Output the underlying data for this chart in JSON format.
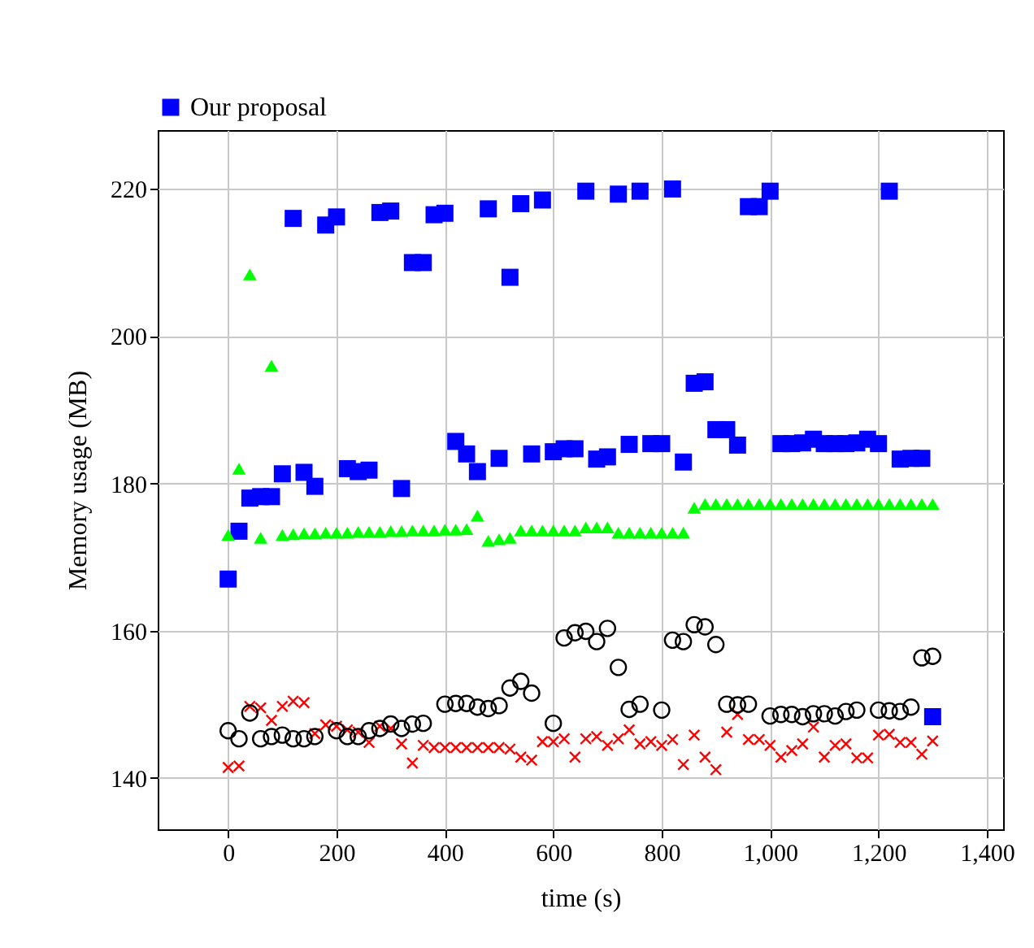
{
  "chart_data": {
    "type": "scatter",
    "xlabel": "time (s)",
    "ylabel": "Memory usage (MB)",
    "x": [
      0,
      20,
      40,
      60,
      80,
      100,
      120,
      140,
      160,
      180,
      200,
      220,
      240,
      260,
      280,
      300,
      320,
      340,
      360,
      380,
      400,
      420,
      440,
      460,
      480,
      500,
      520,
      540,
      560,
      580,
      600,
      620,
      640,
      660,
      680,
      700,
      720,
      740,
      760,
      780,
      800,
      820,
      840,
      860,
      880,
      900,
      920,
      940,
      960,
      980,
      1000,
      1020,
      1040,
      1060,
      1080,
      1100,
      1120,
      1140,
      1160,
      1180,
      1200,
      1220,
      1240,
      1260,
      1280,
      1300
    ],
    "series": [
      {
        "name": "Our proposal",
        "color": "#0000ff",
        "marker": "square",
        "values": [
          167,
          173.5,
          178,
          178.2,
          178.2,
          181.3,
          216,
          181.5,
          179.6,
          215.1,
          216.2,
          182,
          181.6,
          181.8,
          216.8,
          217,
          179.3,
          210,
          210,
          216.5,
          216.7,
          185.7,
          184,
          181.6,
          217.3,
          183.4,
          208,
          218,
          184,
          218.5,
          184.3,
          184.7,
          184.7,
          219.7,
          183.3,
          183.6,
          219.3,
          185.3,
          219.7,
          185.4,
          185.4,
          220,
          182.9,
          193.6,
          193.8,
          187.3,
          187.3,
          185.2,
          217.6,
          217.6,
          219.7,
          185.4,
          185.4,
          185.5,
          186,
          185.4,
          185.4,
          185.4,
          185.5,
          186,
          185.4,
          219.7,
          183.3,
          183.4,
          183.4,
          148.3
        ]
      },
      {
        "color": "#ff0000",
        "marker": "cross",
        "values": [
          141.4,
          141.6,
          149.7,
          149.5,
          147.8,
          149.7,
          150.4,
          150.2,
          146,
          147.2,
          147,
          146.5,
          146.2,
          144.8,
          147,
          146.7,
          144.6,
          142,
          144.4,
          144.1,
          144.1,
          144.1,
          144.1,
          144.1,
          144.1,
          144.1,
          143.9,
          142.8,
          142.4,
          144.9,
          144.9,
          145.3,
          142.8,
          145.3,
          145.6,
          144.4,
          145.3,
          146.5,
          144.6,
          144.9,
          144.4,
          145.2,
          141.8,
          145.8,
          142.8,
          141.1,
          146.2,
          148.6,
          145.2,
          145.2,
          144.4,
          142.8,
          143.7,
          144.6,
          146.9,
          142.8,
          144.4,
          144.6,
          142.7,
          142.7,
          145.8,
          145.9,
          144.8,
          144.8,
          143.2,
          145
        ]
      },
      {
        "color": "#000000",
        "marker": "circle",
        "values": [
          146.4,
          145.3,
          148.8,
          145.3,
          145.6,
          145.8,
          145.3,
          145.3,
          145.6,
          null,
          146.4,
          145.6,
          145.6,
          146.4,
          146.7,
          147.3,
          146.7,
          147.3,
          147.4,
          null,
          150,
          150.1,
          150.1,
          149.6,
          149.4,
          149.8,
          152.2,
          153.1,
          151.5,
          null,
          147.4,
          159,
          159.7,
          159.9,
          158.5,
          160.3,
          155,
          149.3,
          150,
          null,
          149.2,
          158.7,
          158.5,
          160.8,
          160.5,
          158.1,
          150,
          149.9,
          150,
          null,
          148.4,
          148.6,
          148.6,
          148.3,
          148.7,
          148.7,
          148.4,
          149,
          149.2,
          null,
          149.2,
          149.1,
          149,
          149.6,
          156.3,
          156.5
        ]
      },
      {
        "color": "#00ff00",
        "marker": "triangle",
        "values": [
          173,
          182,
          208.4,
          172.6,
          196,
          173,
          173.1,
          173.2,
          173.2,
          173.3,
          173.3,
          173.3,
          173.4,
          173.4,
          173.4,
          173.5,
          173.5,
          173.6,
          173.6,
          173.6,
          173.7,
          173.7,
          173.8,
          175.6,
          172.2,
          172.4,
          172.6,
          173.6,
          173.6,
          173.6,
          173.6,
          173.6,
          173.6,
          174,
          174,
          174,
          173.3,
          173.3,
          173.3,
          173.3,
          173.3,
          173.3,
          173.3,
          176.7,
          177.2,
          177.2,
          177.2,
          177.2,
          177.2,
          177.2,
          177.2,
          177.2,
          177.2,
          177.2,
          177.2,
          177.2,
          177.2,
          177.2,
          177.2,
          177.2,
          177.2,
          177.2,
          177.2,
          177.2,
          177.2,
          177.2
        ]
      }
    ],
    "xlim": [
      -130,
      1430
    ],
    "ylim": [
      133,
      228
    ],
    "xticks": [
      0,
      200,
      400,
      600,
      800,
      {
        "value": 1000,
        "label": "1,000"
      },
      {
        "value": 1200,
        "label": "1,200"
      },
      {
        "value": 1400,
        "label": "1,400"
      }
    ],
    "yticks": [
      140,
      160,
      180,
      200,
      220
    ],
    "grid": true,
    "legend": "top"
  }
}
